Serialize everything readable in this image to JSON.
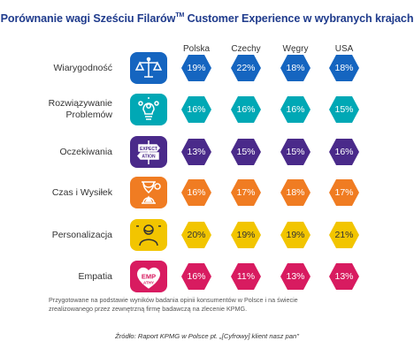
{
  "title_main": "Porównanie wagi Sześciu Filarów",
  "title_tm": "TM",
  "title_rest": " Customer Experience w wybranych krajach",
  "chart_data": {
    "type": "table",
    "columns": [
      "Polska",
      "Czechy",
      "Węgry",
      "USA"
    ],
    "rows": [
      {
        "label": "Wiarygodność",
        "icon": "scales-icon",
        "color": "#1565c0",
        "text_color": "#ffffff",
        "values": [
          "19%",
          "22%",
          "18%",
          "18%"
        ]
      },
      {
        "label": "Rozwiązywanie\nProblemów",
        "icon": "lightbulb-gears-icon",
        "color": "#00a8b5",
        "text_color": "#ffffff",
        "values": [
          "16%",
          "16%",
          "16%",
          "15%"
        ]
      },
      {
        "label": "Oczekiwania",
        "icon": "expectation-signpost-icon",
        "color": "#4a2a8a",
        "text_color": "#ffffff",
        "values": [
          "13%",
          "15%",
          "15%",
          "16%"
        ]
      },
      {
        "label": "Czas i Wysiłek",
        "icon": "hourglass-icon",
        "color": "#f07c22",
        "text_color": "#ffffff",
        "values": [
          "16%",
          "17%",
          "18%",
          "17%"
        ]
      },
      {
        "label": "Personalizacja",
        "icon": "person-icon",
        "color": "#f2c500",
        "text_color": "#333333",
        "values": [
          "20%",
          "19%",
          "19%",
          "21%"
        ]
      },
      {
        "label": "Empatia",
        "icon": "emp-heart-icon",
        "color": "#d81b60",
        "text_color": "#ffffff",
        "values": [
          "16%",
          "11%",
          "13%",
          "13%"
        ]
      }
    ]
  },
  "note": "Przygotowane na podstawie wyników badania opinii konsumentów w Polsce i na świecie zrealizowanego przez zewnętrzną firmę badawczą na zlecenie KPMG.",
  "source": "Źródło: Raport KPMG w Polsce pt. „[Cyfrowy] klient nasz pan\""
}
